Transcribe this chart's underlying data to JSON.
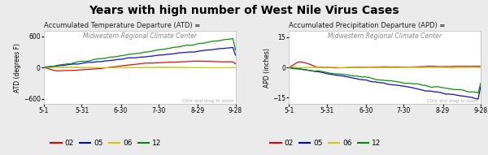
{
  "title": "Years with high number of West Nile Virus Cases",
  "title_fontsize": 10,
  "left_panel_title": "Accumulated Temperature Departure (ATD) ≡",
  "right_panel_title": "Accumulated Precipitation Departure (APD) ≡",
  "subtitle": "Midwestern Regional Climate Center",
  "xlabel_ticks": [
    "5-1",
    "5-31",
    "6-30",
    "7-30",
    "8-29",
    "9-28"
  ],
  "left_ylabel": "ATD (degrees F)",
  "right_ylabel": "APD (inches)",
  "left_ylim": [
    -700,
    700
  ],
  "left_yticks": [
    -600,
    0,
    600
  ],
  "right_ylim": [
    -18,
    18
  ],
  "right_yticks": [
    -15,
    0,
    15
  ],
  "legend_labels": [
    "02",
    "05",
    "06",
    "12"
  ],
  "line_colors": [
    "#dd0000",
    "#0000cc",
    "#cccc00",
    "#008800"
  ],
  "background_color": "#ebebeb",
  "panel_bg": "#ffffff",
  "watermark_text": "Click and drag to zoom",
  "n_points": 153
}
